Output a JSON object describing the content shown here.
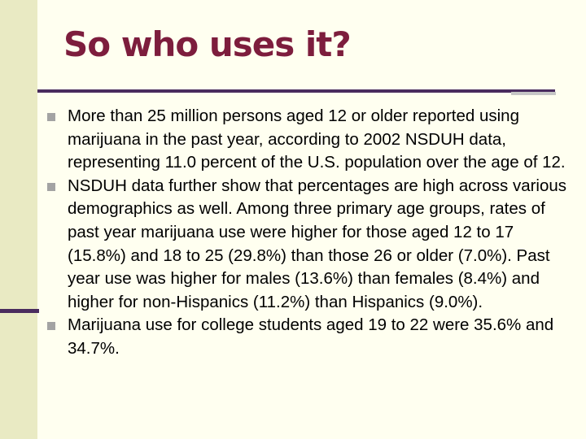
{
  "slide": {
    "title": "So who uses it?",
    "bullets": [
      "More than 25 million persons aged 12 or older reported using marijuana in the past year, according to 2002 NSDUH data, representing 11.0 percent of the U.S. population over the age of 12.",
      "NSDUH data further show that percentages are high across various demographics as well. Among three primary age groups, rates of past year marijuana use were higher for those aged 12 to 17 (15.8%) and 18 to 25 (29.8%) than those 26 or older (7.0%). Past year use was higher for males (13.6%) than females (8.4%) and higher for non-Hispanics (11.2%) than Hispanics (9.0%).",
      "Marijuana use for college students aged 19 to 22 were 35.6% and 34.7%."
    ]
  },
  "colors": {
    "background": "#fffff0",
    "left_band": "#e9eac3",
    "title": "#7d1d3d",
    "rule": "#4a2c5e",
    "bullet_marker": "#a3a3a3"
  },
  "icons": {
    "bullet_marker": "square-bullet-icon"
  }
}
